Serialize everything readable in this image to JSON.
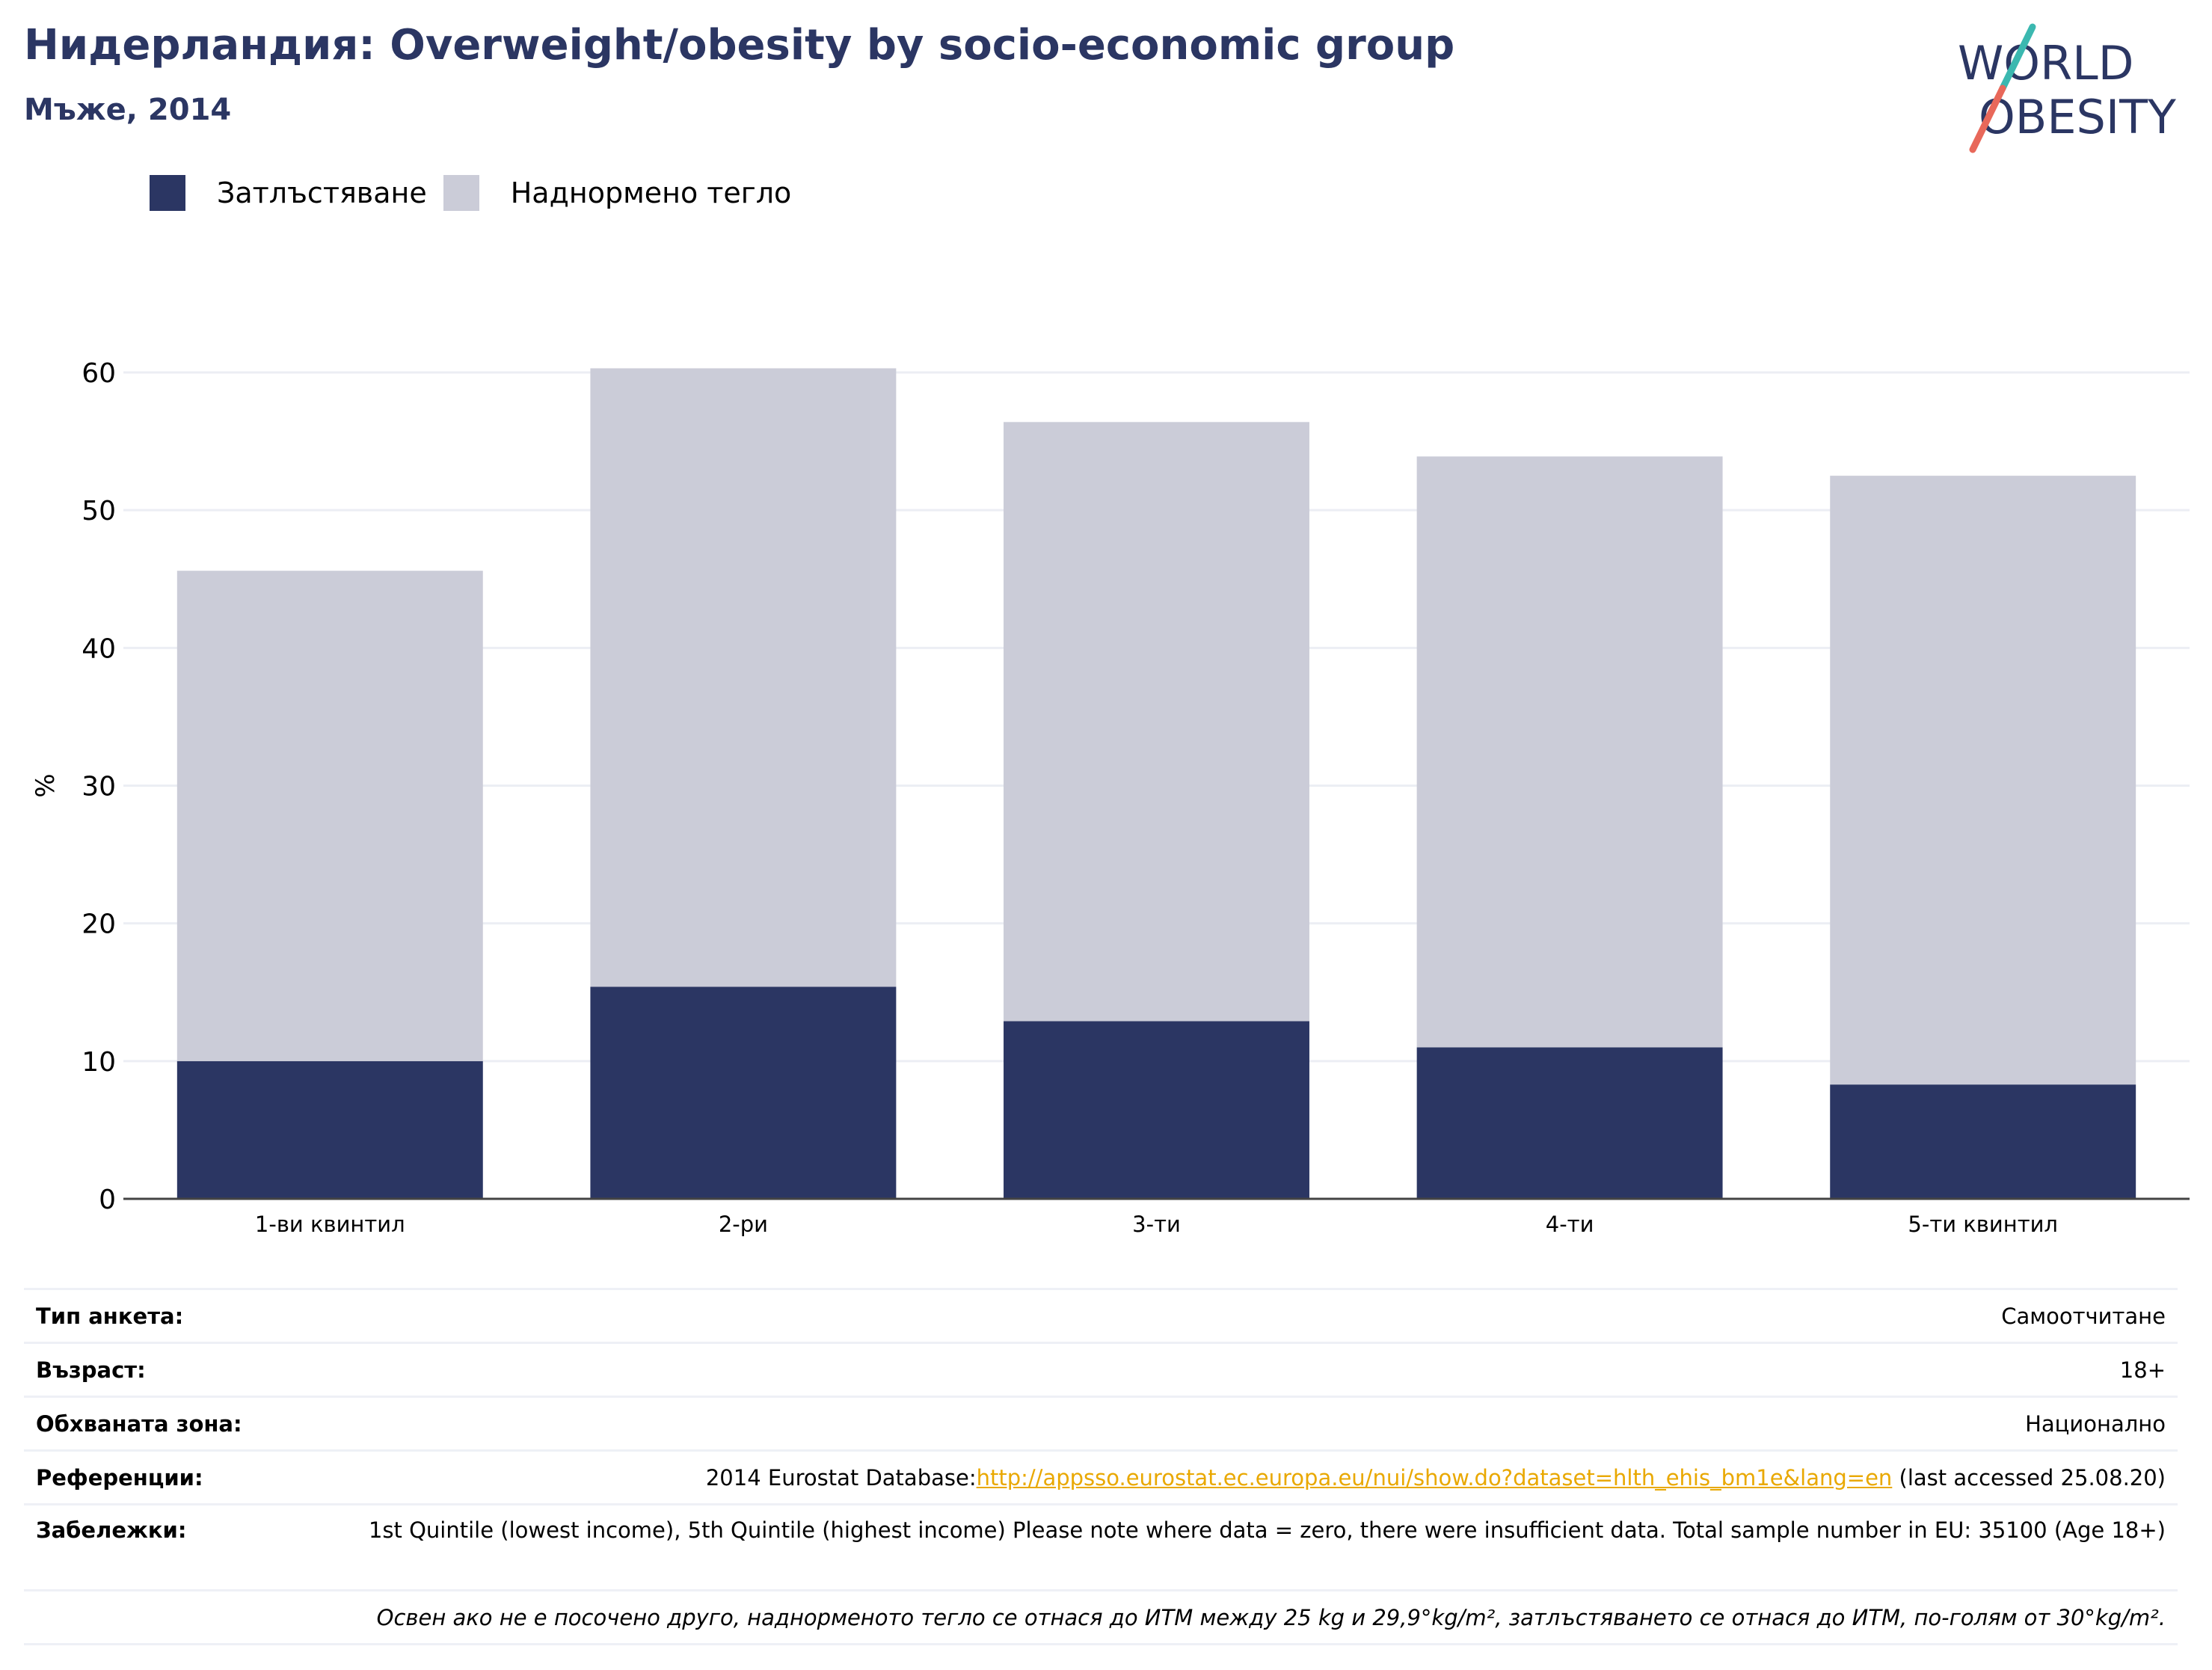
{
  "header": {
    "title": "Нидерландия: Overweight/obesity by socio-economic group",
    "subtitle": "Мъже, 2014"
  },
  "logo": {
    "line1": "WORLD",
    "line2": "OBESITY",
    "colors": {
      "text": "#2b3663",
      "slash_top": "#3bb8b0",
      "slash_bottom": "#e8685a"
    }
  },
  "colors": {
    "obesity": "#2b3663",
    "overweight": "#cbccd8",
    "gridline": "#eceef4",
    "axis": "#444444"
  },
  "chart_data": {
    "type": "bar",
    "stacked": true,
    "categories": [
      "1-ви квинтил",
      "2-ри",
      "3-ти",
      "4-ти",
      "5-ти квинтил"
    ],
    "series": [
      {
        "name": "Затлъстяване",
        "values": [
          10.0,
          15.4,
          12.9,
          11.0,
          8.3
        ]
      },
      {
        "name": "Наднормено тегло",
        "values": [
          35.6,
          44.9,
          43.5,
          42.9,
          44.2
        ]
      }
    ],
    "totals": [
      45.6,
      60.3,
      56.4,
      53.9,
      52.5
    ],
    "xlabel": "",
    "ylabel": "%",
    "ylim": [
      0,
      60
    ],
    "yticks": [
      0,
      10,
      20,
      30,
      40,
      50,
      60
    ],
    "grid": true,
    "legend_position": "top-left"
  },
  "info": {
    "survey_type_label": "Тип анкета:",
    "survey_type_value": "Самоотчитане",
    "age_label": "Възраст:",
    "age_value": "18+",
    "area_label": "Обхваната зона:",
    "area_value": "Национално",
    "references_label": "Референции:",
    "references_prefix": "2014 Eurostat Database:",
    "references_link": "http://appsso.eurostat.ec.europa.eu/nui/show.do?dataset=hlth_ehis_bm1e&lang=en",
    "references_suffix": " (last accessed 25.08.20)",
    "notes_label": "Забележки:",
    "notes_value": "1st Quintile (lowest income), 5th Quintile (highest income) Please note where data = zero, there were insufficient data. Total sample number in EU: 35100 (Age 18+)",
    "definition_note": "Освен ако не е посочено друго, наднорменото тегло се отнася до ИТМ между 25 kg и 29,9°kg/m², затлъстяването се отнася до ИТМ, по-голям от 30°kg/m²."
  }
}
